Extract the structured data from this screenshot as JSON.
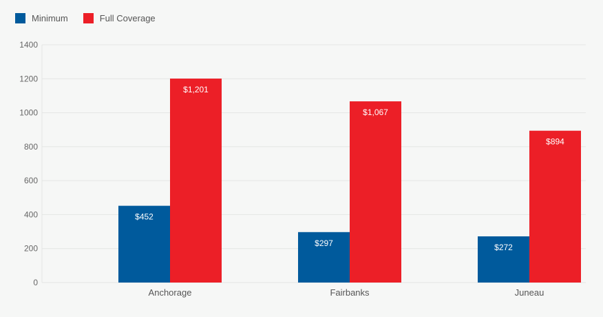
{
  "colors": {
    "minimum": "#005a9c",
    "full": "#ec1f27",
    "grid": "#e4e6e4",
    "axis_text": "#666666",
    "label_text": "#ffffff"
  },
  "chart_data": {
    "type": "bar",
    "title": "",
    "xlabel": "",
    "ylabel": "",
    "ylim": [
      0,
      1400
    ],
    "yticks": [
      0,
      200,
      400,
      600,
      800,
      1000,
      1200,
      1400
    ],
    "grid": true,
    "legend_position": "top-left",
    "categories": [
      "Anchorage",
      "Fairbanks",
      "Juneau"
    ],
    "series": [
      {
        "name": "Minimum",
        "values": [
          452,
          297,
          272
        ],
        "labels": [
          "$452",
          "$297",
          "$272"
        ]
      },
      {
        "name": "Full Coverage",
        "values": [
          1201,
          1067,
          894
        ],
        "labels": [
          "$1,201",
          "$1,067",
          "$894"
        ]
      }
    ]
  }
}
